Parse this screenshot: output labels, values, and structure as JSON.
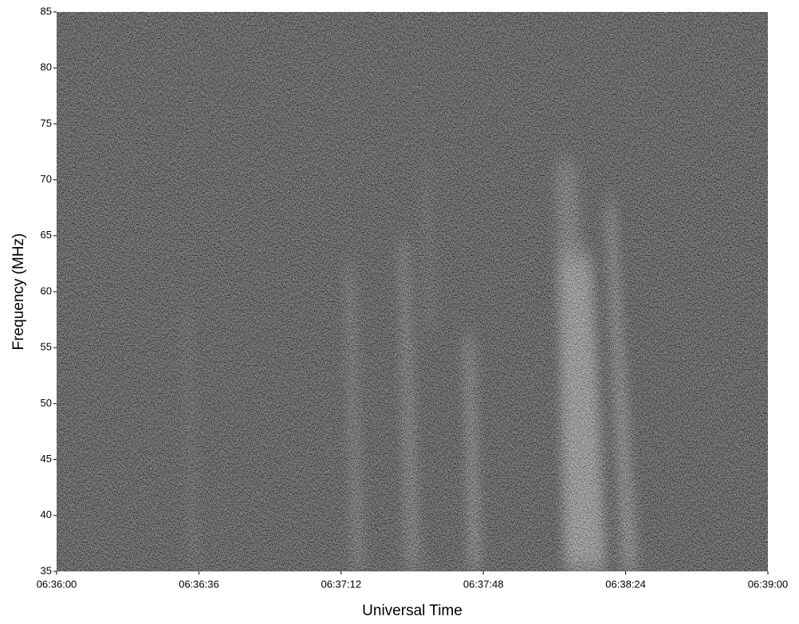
{
  "chart_data": {
    "type": "spectrogram",
    "x_label": "Universal Time",
    "y_label": "Frequency (MHz)",
    "xlim": [
      "06:36:00",
      "06:39:00"
    ],
    "xticks": [
      "06:36:00",
      "06:36:36",
      "06:37:12",
      "06:37:48",
      "06:38:24",
      "06:39:00"
    ],
    "ylim": [
      35,
      85
    ],
    "yticks": [
      35,
      40,
      45,
      50,
      55,
      60,
      65,
      70,
      75,
      80,
      85
    ]
  }
}
